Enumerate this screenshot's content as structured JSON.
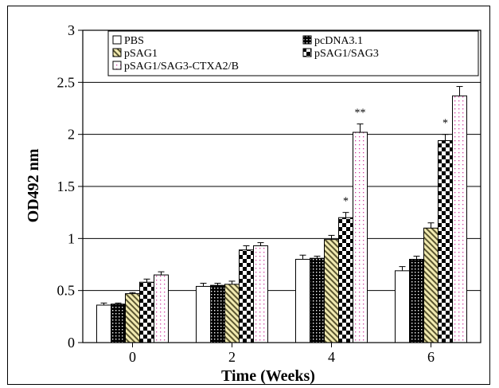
{
  "chart_data": {
    "type": "bar",
    "title": "",
    "xlabel": "Time (Weeks)",
    "ylabel": "OD492 nm",
    "categories": [
      "0",
      "2",
      "4",
      "6"
    ],
    "ylim": [
      0,
      3
    ],
    "yticks": [
      "0",
      "0.5",
      "1",
      "1.5",
      "2",
      "2.5",
      "3"
    ],
    "grid": true,
    "legend_position": "top",
    "series": [
      {
        "name": "PBS",
        "pattern": "white",
        "values": [
          0.36,
          0.54,
          0.8,
          0.69
        ],
        "errors": [
          0.02,
          0.03,
          0.04,
          0.04
        ],
        "stars": [
          "",
          "",
          "",
          ""
        ]
      },
      {
        "name": "pcDNA3.1",
        "pattern": "dots-black",
        "values": [
          0.37,
          0.55,
          0.81,
          0.8
        ],
        "errors": [
          0.01,
          0.02,
          0.02,
          0.03
        ],
        "stars": [
          "",
          "",
          "",
          ""
        ]
      },
      {
        "name": "pSAG1",
        "pattern": "diagonal-olive",
        "values": [
          0.47,
          0.56,
          0.99,
          1.1
        ],
        "errors": [
          0.01,
          0.03,
          0.04,
          0.05
        ],
        "stars": [
          "",
          "",
          "",
          ""
        ]
      },
      {
        "name": "pSAG1/SAG3",
        "pattern": "checker",
        "values": [
          0.58,
          0.89,
          1.2,
          1.94
        ],
        "errors": [
          0.03,
          0.04,
          0.05,
          0.06
        ],
        "stars": [
          "",
          "",
          "*",
          "*"
        ]
      },
      {
        "name": "pSAG1/SAG3-CTXA2/B",
        "pattern": "dots-pink",
        "values": [
          0.65,
          0.93,
          2.02,
          2.37
        ],
        "errors": [
          0.03,
          0.03,
          0.08,
          0.09
        ],
        "stars": [
          "",
          "",
          "**",
          "**"
        ]
      }
    ]
  }
}
